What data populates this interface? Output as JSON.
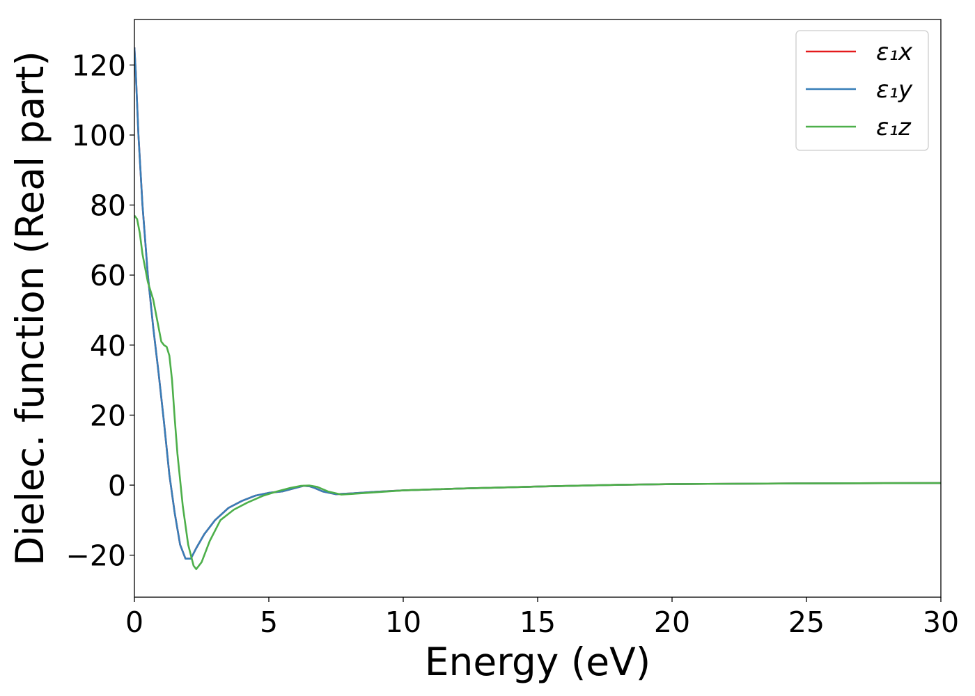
{
  "chart_data": {
    "type": "line",
    "title": "",
    "xlabel": "Energy (eV)",
    "ylabel": "Dielec. function (Real part)",
    "xlim": [
      0,
      30
    ],
    "ylim": [
      -32,
      133
    ],
    "xticks": [
      0,
      5,
      10,
      15,
      20,
      25,
      30
    ],
    "xtick_labels": [
      "0",
      "5",
      "10",
      "15",
      "20",
      "25",
      "30"
    ],
    "yticks": [
      -20,
      0,
      20,
      40,
      60,
      80,
      100,
      120
    ],
    "ytick_labels": [
      "−20",
      "0",
      "20",
      "40",
      "60",
      "80",
      "100",
      "120"
    ],
    "grid": false,
    "legend_position": "top-right",
    "series": [
      {
        "name": "ε₁x",
        "color": "#e41a1c",
        "x": [
          0,
          0.05,
          0.15,
          0.3,
          0.5,
          0.7,
          0.9,
          1.1,
          1.3,
          1.5,
          1.7,
          1.9,
          2.1,
          2.3,
          2.6,
          3.0,
          3.5,
          4.0,
          4.5,
          5.0,
          5.5,
          6.0,
          6.3,
          6.5,
          6.7,
          7.0,
          7.5,
          8.0,
          9.0,
          10,
          12,
          15,
          18,
          20,
          25,
          30
        ],
        "y": [
          125,
          118,
          100,
          80,
          60,
          45,
          32,
          18,
          3,
          -8,
          -17,
          -21,
          -21,
          -18,
          -14,
          -10,
          -6.5,
          -4.5,
          -3,
          -2.2,
          -1.8,
          -0.8,
          -0.2,
          -0.3,
          -0.8,
          -1.8,
          -2.6,
          -2.4,
          -1.9,
          -1.5,
          -1.0,
          -0.4,
          0.1,
          0.3,
          0.5,
          0.6
        ]
      },
      {
        "name": "ε₁y",
        "color": "#377eb8",
        "x": [
          0,
          0.05,
          0.15,
          0.3,
          0.5,
          0.7,
          0.9,
          1.1,
          1.3,
          1.5,
          1.7,
          1.9,
          2.1,
          2.3,
          2.6,
          3.0,
          3.5,
          4.0,
          4.5,
          5.0,
          5.5,
          6.0,
          6.3,
          6.5,
          6.7,
          7.0,
          7.5,
          8.0,
          9.0,
          10,
          12,
          15,
          18,
          20,
          25,
          30
        ],
        "y": [
          125,
          118,
          100,
          80,
          60,
          45,
          32,
          18,
          3,
          -8,
          -17,
          -21,
          -21,
          -18,
          -14,
          -10,
          -6.5,
          -4.5,
          -3,
          -2.2,
          -1.8,
          -0.8,
          -0.2,
          -0.3,
          -0.8,
          -1.8,
          -2.6,
          -2.4,
          -1.9,
          -1.5,
          -1.0,
          -0.4,
          0.1,
          0.3,
          0.5,
          0.6
        ]
      },
      {
        "name": "ε₁z",
        "color": "#4daf4a",
        "x": [
          0,
          0.1,
          0.2,
          0.3,
          0.5,
          0.7,
          0.8,
          0.9,
          1.0,
          1.1,
          1.2,
          1.3,
          1.4,
          1.5,
          1.6,
          1.8,
          2.0,
          2.2,
          2.3,
          2.5,
          2.8,
          3.2,
          3.7,
          4.2,
          4.8,
          5.3,
          5.8,
          6.2,
          6.5,
          6.8,
          7.2,
          7.7,
          8.5,
          10,
          12,
          15,
          18,
          20,
          25,
          30
        ],
        "y": [
          77,
          76,
          72,
          66,
          58,
          53,
          49,
          45,
          41,
          40,
          39.5,
          37,
          30,
          19,
          9,
          -6,
          -17,
          -23,
          -24,
          -22,
          -16,
          -10,
          -7,
          -5,
          -3,
          -1.8,
          -0.8,
          -0.2,
          -0.1,
          -0.5,
          -1.8,
          -2.7,
          -2.3,
          -1.5,
          -1.0,
          -0.4,
          0.1,
          0.3,
          0.5,
          0.6
        ]
      }
    ]
  }
}
